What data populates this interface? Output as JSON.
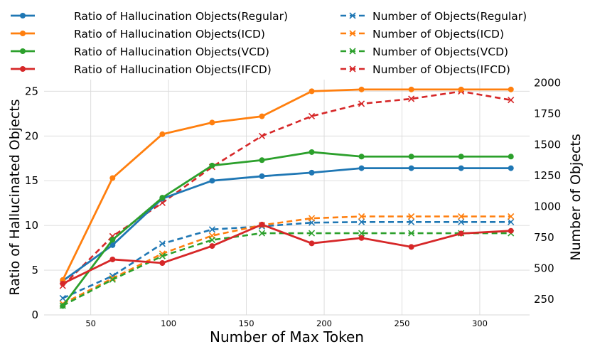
{
  "chart_data": {
    "type": "line",
    "xlabel": "Number of Max Token",
    "ylabel_left": "Ratio of Hallucinated Objects",
    "ylabel_right": "Number of Objects",
    "x": [
      32,
      64,
      96,
      128,
      160,
      192,
      224,
      256,
      288,
      320
    ],
    "xlim": [
      20,
      332
    ],
    "ylim_left": [
      0,
      26.3
    ],
    "ylim_right": [
      125,
      2025
    ],
    "xticks": [
      50,
      100,
      150,
      200,
      250,
      300
    ],
    "yticks_left": [
      0,
      5,
      10,
      15,
      20,
      25
    ],
    "yticks_right": [
      250,
      500,
      750,
      1000,
      1250,
      1500,
      1750,
      2000
    ],
    "grid": true,
    "legend_position": "top",
    "series_left": [
      {
        "name": "Ratio of Hallucination Objects(Regular)",
        "color": "#1f77b4",
        "values": [
          3.8,
          7.8,
          13.0,
          15.0,
          15.5,
          15.9,
          16.4,
          16.4,
          16.4,
          16.4
        ]
      },
      {
        "name": "Ratio of Hallucination Objects(ICD)",
        "color": "#ff7f0e",
        "values": [
          3.9,
          15.3,
          20.2,
          21.5,
          22.2,
          25.0,
          25.2,
          25.2,
          25.2,
          25.2
        ]
      },
      {
        "name": "Ratio of Hallucination Objects(VCD)",
        "color": "#2ca02c",
        "values": [
          1.0,
          8.4,
          13.1,
          16.7,
          17.3,
          18.2,
          17.7,
          17.7,
          17.7,
          17.7
        ]
      },
      {
        "name": "Ratio of Hallucination Objects(IFCD)",
        "color": "#d62728",
        "values": [
          3.5,
          6.2,
          5.8,
          7.7,
          10.1,
          8.0,
          8.6,
          7.6,
          9.1,
          9.4
        ]
      }
    ],
    "series_right": [
      {
        "name": "Number of Objects(Regular)",
        "color": "#1f77b4",
        "values": [
          260,
          440,
          700,
          815,
          840,
          870,
          875,
          875,
          875,
          875
        ]
      },
      {
        "name": "Number of Objects(ICD)",
        "color": "#ff7f0e",
        "values": [
          215,
          420,
          620,
          765,
          850,
          905,
          920,
          920,
          920,
          920
        ]
      },
      {
        "name": "Number of Objects(VCD)",
        "color": "#2ca02c",
        "values": [
          200,
          410,
          600,
          730,
          785,
          785,
          785,
          785,
          785,
          785
        ]
      },
      {
        "name": "Number of Objects(IFCD)",
        "color": "#d62728",
        "values": [
          360,
          760,
          1030,
          1320,
          1570,
          1730,
          1830,
          1870,
          1930,
          1860
        ]
      }
    ]
  }
}
